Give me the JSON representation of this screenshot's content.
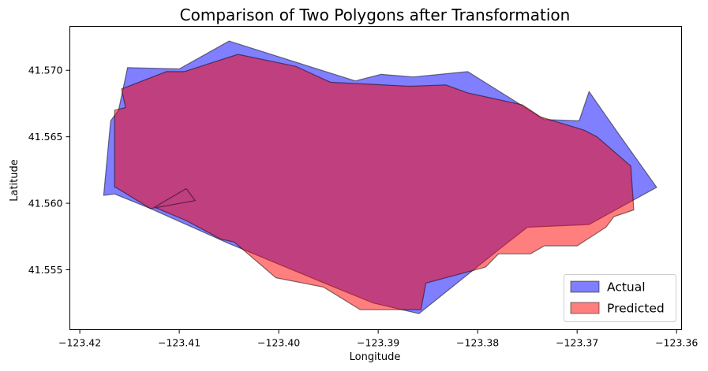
{
  "chart_data": {
    "type": "area",
    "title": "Comparison of Two Polygons after Transformation",
    "xlabel": "Longitude",
    "ylabel": "Latitude",
    "xlim": [
      -123.421,
      -123.3595
    ],
    "ylim": [
      41.5505,
      41.5733
    ],
    "xticks": [
      -123.42,
      -123.41,
      -123.4,
      -123.39,
      -123.38,
      -123.37,
      -123.36
    ],
    "xtick_labels": [
      "−123.42",
      "−123.41",
      "−123.40",
      "−123.39",
      "−123.38",
      "−123.37",
      "−123.36"
    ],
    "yticks": [
      41.555,
      41.56,
      41.565,
      41.57
    ],
    "ytick_labels": [
      "41.555",
      "41.560",
      "41.565",
      "41.570"
    ],
    "grid": false,
    "legend_position": "lower-right",
    "series": [
      {
        "name": "Actual",
        "color": "#0000ff",
        "alpha": 0.5,
        "points": [
          [
            -123.4176,
            41.5606
          ],
          [
            -123.4169,
            41.5662
          ],
          [
            -123.4161,
            41.567
          ],
          [
            -123.4152,
            41.5702
          ],
          [
            -123.41,
            41.5701
          ],
          [
            -123.405,
            41.5722
          ],
          [
            -123.3923,
            41.5692
          ],
          [
            -123.3897,
            41.5697
          ],
          [
            -123.3865,
            41.5695
          ],
          [
            -123.381,
            41.5699
          ],
          [
            -123.3733,
            41.5663
          ],
          [
            -123.3698,
            41.5662
          ],
          [
            -123.3688,
            41.5684
          ],
          [
            -123.366,
            41.5654
          ],
          [
            -123.362,
            41.5612
          ],
          [
            -123.3688,
            41.5584
          ],
          [
            -123.375,
            41.5582
          ],
          [
            -123.3779,
            41.5565
          ],
          [
            -123.3859,
            41.5517
          ],
          [
            -123.3905,
            41.5525
          ],
          [
            -123.3951,
            41.5539
          ],
          [
            -123.4051,
            41.557
          ],
          [
            -123.4129,
            41.5596
          ],
          [
            -123.4165,
            41.5607
          ]
        ]
      },
      {
        "name": "Predicted",
        "color": "#ff0000",
        "alpha": 0.5,
        "points": [
          [
            -123.4165,
            41.5612
          ],
          [
            -123.4165,
            41.567
          ],
          [
            -123.4154,
            41.5672
          ],
          [
            -123.4158,
            41.5686
          ],
          [
            -123.4113,
            41.5699
          ],
          [
            -123.4095,
            41.5699
          ],
          [
            -123.4041,
            41.5712
          ],
          [
            -123.3983,
            41.5703
          ],
          [
            -123.3948,
            41.5691
          ],
          [
            -123.3868,
            41.5688
          ],
          [
            -123.3832,
            41.5689
          ],
          [
            -123.381,
            41.5683
          ],
          [
            -123.3755,
            41.5674
          ],
          [
            -123.3737,
            41.5665
          ],
          [
            -123.3693,
            41.5655
          ],
          [
            -123.368,
            41.565
          ],
          [
            -123.3646,
            41.5628
          ],
          [
            -123.3643,
            41.5595
          ],
          [
            -123.3663,
            41.559
          ],
          [
            -123.3671,
            41.5582
          ],
          [
            -123.37,
            41.5568
          ],
          [
            -123.3733,
            41.5568
          ],
          [
            -123.3747,
            41.5562
          ],
          [
            -123.3779,
            41.5562
          ],
          [
            -123.3792,
            41.5552
          ],
          [
            -123.3852,
            41.554
          ],
          [
            -123.3857,
            41.552
          ],
          [
            -123.3918,
            41.552
          ],
          [
            -123.3955,
            41.5537
          ],
          [
            -123.4003,
            41.5544
          ],
          [
            -123.4045,
            41.5571
          ],
          [
            -123.4058,
            41.5573
          ],
          [
            -123.4093,
            41.5587
          ],
          [
            -123.4125,
            41.5597
          ],
          [
            -123.4093,
            41.5611
          ],
          [
            -123.4084,
            41.5602
          ],
          [
            -123.4129,
            41.5596
          ],
          [
            -123.4164,
            41.5612
          ]
        ]
      }
    ]
  }
}
